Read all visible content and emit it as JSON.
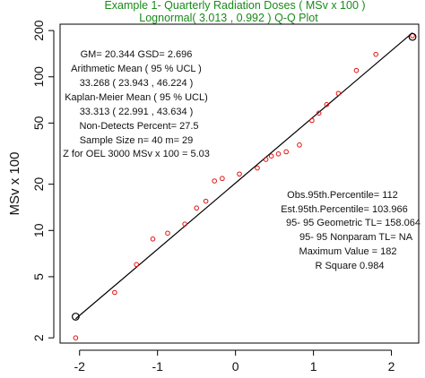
{
  "chart_data": {
    "type": "scatter",
    "title": "Example 1- Quarterly Radiation Doses   ( MSv x 100 )",
    "subtitle": "Lognormal( 3.013 , 0.992 )  Q-Q Plot",
    "xlabel": "",
    "ylabel": "MSv x 100",
    "y_scale": "log",
    "xlim": [
      -2.25,
      2.35
    ],
    "ylim": [
      1.85,
      220
    ],
    "x_ticks": [
      -2,
      -1,
      0,
      1,
      2
    ],
    "y_ticks": [
      2,
      5,
      10,
      20,
      50,
      100,
      200
    ],
    "x_tick_labels": [
      "-2",
      "-1",
      "0",
      "1",
      "2"
    ],
    "y_tick_labels": [
      "2",
      "5",
      "10",
      "20",
      "50",
      "100",
      "200"
    ],
    "grid": false,
    "colors": {
      "points": "#e01010",
      "fit_line": "#000000",
      "title": "#1a8a1a",
      "text": "#111111"
    },
    "points": [
      {
        "x": -2.05,
        "y": 2.0
      },
      {
        "x": -1.55,
        "y": 3.95
      },
      {
        "x": -1.27,
        "y": 6.0
      },
      {
        "x": -1.06,
        "y": 8.8
      },
      {
        "x": -0.87,
        "y": 9.6
      },
      {
        "x": -0.65,
        "y": 11.0
      },
      {
        "x": -0.5,
        "y": 14.0
      },
      {
        "x": -0.38,
        "y": 15.5
      },
      {
        "x": -0.27,
        "y": 21.0
      },
      {
        "x": -0.17,
        "y": 21.8
      },
      {
        "x": 0.05,
        "y": 23.3
      },
      {
        "x": 0.28,
        "y": 25.5
      },
      {
        "x": 0.39,
        "y": 29.0
      },
      {
        "x": 0.46,
        "y": 30.5
      },
      {
        "x": 0.55,
        "y": 31.5
      },
      {
        "x": 0.65,
        "y": 32.5
      },
      {
        "x": 0.82,
        "y": 36.0
      },
      {
        "x": 0.98,
        "y": 52.0
      },
      {
        "x": 1.07,
        "y": 58.0
      },
      {
        "x": 1.17,
        "y": 66.0
      },
      {
        "x": 1.32,
        "y": 78.0
      },
      {
        "x": 1.55,
        "y": 110.0
      },
      {
        "x": 1.8,
        "y": 140.0
      },
      {
        "x": 2.27,
        "y": 185.0
      }
    ],
    "highlighted_points": [
      {
        "x": -2.05,
        "y": 2.75
      },
      {
        "x": 2.27,
        "y": 182.0
      }
    ],
    "fit_line": {
      "intercept_log": 3.013,
      "slope_log": 0.992
    },
    "stats_left": [
      "GM=  20.344  GSD=  2.696",
      "Arithmetic Mean (  95 % UCL )",
      "33.268    ( 23.943 ,  46.224 )",
      "Kaplan-Meier Mean ( 95 % UCL)",
      "33.313   ( 22.991 , 43.634 )",
      "Non-Detects Percent=   27.5",
      "Sample Size n=  40   m=  29",
      "Z for OEL 3000 MSv x 100  =    5.03"
    ],
    "stats_right": [
      "Obs.95th.Percentile=   112",
      "Est.95th.Percentile=   103.966",
      "95- 95  Geometric  TL=   158.064",
      "95- 95 Nonparam   TL=     NA",
      "Maximum Value =   182",
      "R Square  0.984"
    ]
  }
}
